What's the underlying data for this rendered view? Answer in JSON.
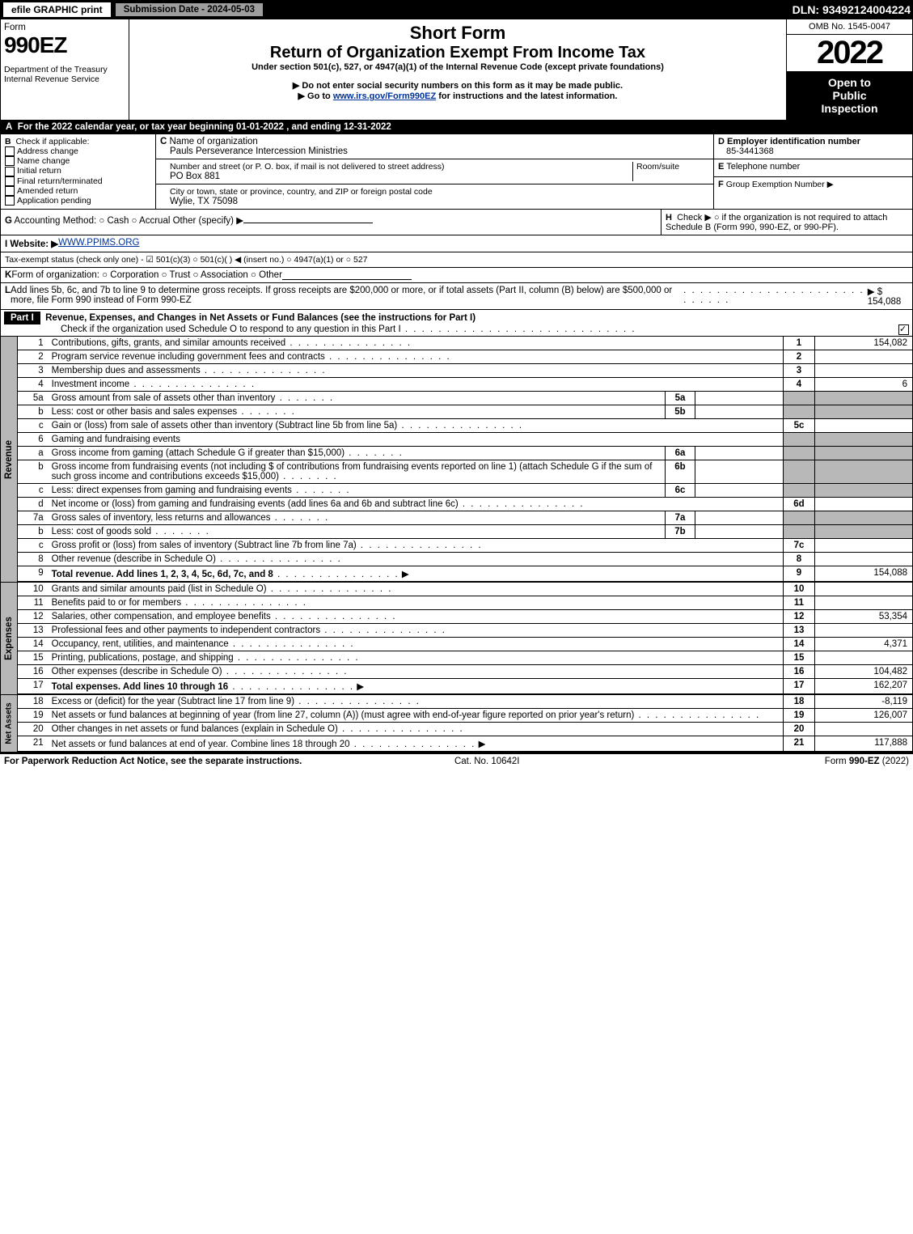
{
  "topbar": {
    "efile": "efile GRAPHIC print",
    "sub": "Submission Date - 2024-05-03",
    "dln": "DLN: 93492124004224"
  },
  "hdr": {
    "form": "Form",
    "n": "990EZ",
    "dept": "Department of the Treasury\nInternal Revenue Service",
    "t1": "Short Form",
    "t2": "Return of Organization Exempt From Income Tax",
    "sub": "Under section 501(c), 527, or 4947(a)(1) of the Internal Revenue Code (except private foundations)",
    "warn": "▶ Do not enter social security numbers on this form as it may be made public.",
    "goto": "▶ Go to www.irs.gov/Form990EZ for instructions and the latest information.",
    "omb": "OMB No. 1545-0047",
    "year": "2022",
    "open": "Open to Public Inspection"
  },
  "A": "For the 2022 calendar year, or tax year beginning 01-01-2022 , and ending 12-31-2022",
  "B": {
    "lbl": "Check if applicable:",
    "items": [
      "Address change",
      "Name change",
      "Initial return",
      "Final return/terminated",
      "Amended return",
      "Application pending"
    ]
  },
  "C": {
    "lbl": "Name of organization",
    "name": "Pauls Perseverance Intercession Ministries",
    "addr_lbl": "Number and street (or P. O. box, if mail is not delivered to street address)",
    "room": "Room/suite",
    "addr": "PO Box 881",
    "city_lbl": "City or town, state or province, country, and ZIP or foreign postal code",
    "city": "Wylie, TX  75098"
  },
  "D": {
    "lbl": "Employer identification number",
    "val": "85-3441368"
  },
  "E": "Telephone number",
  "F": "Group Exemption Number  ▶",
  "G": "Accounting Method:   ○ Cash   ○ Accrual   Other (specify) ▶",
  "H": "Check ▶  ○  if the organization is not required to attach Schedule B (Form 990, 990-EZ, or 990-PF).",
  "I": {
    "lbl": "Website: ▶",
    "val": "WWW.PPIMS.ORG"
  },
  "J": "Tax-exempt status (check only one) - ☑ 501(c)(3) ○ 501(c)(  ) ◀ (insert no.) ○ 4947(a)(1) or ○ 527",
  "K": "Form of organization:   ○ Corporation   ○ Trust   ○ Association   ○ Other",
  "L": {
    "text": "Add lines 5b, 6c, and 7b to line 9 to determine gross receipts. If gross receipts are $200,000 or more, or if total assets (Part II, column (B) below) are $500,000 or more, file Form 990 instead of Form 990-EZ",
    "amt": "▶ $ 154,088"
  },
  "part1": {
    "lbl": "Part I",
    "title": "Revenue, Expenses, and Changes in Net Assets or Fund Balances (see the instructions for Part I)",
    "sub": "Check if the organization used Schedule O to respond to any question in this Part I"
  },
  "sections": {
    "rev": "Revenue",
    "exp": "Expenses",
    "net": "Net Assets"
  },
  "lines": [
    {
      "n": "1",
      "t": "Contributions, gifts, grants, and similar amounts received",
      "r": "1",
      "v": "154,082"
    },
    {
      "n": "2",
      "t": "Program service revenue including government fees and contracts",
      "r": "2",
      "v": ""
    },
    {
      "n": "3",
      "t": "Membership dues and assessments",
      "r": "3",
      "v": ""
    },
    {
      "n": "4",
      "t": "Investment income",
      "r": "4",
      "v": "6"
    },
    {
      "n": "5a",
      "t": "Gross amount from sale of assets other than inventory",
      "sb": "5a"
    },
    {
      "n": "b",
      "t": "Less: cost or other basis and sales expenses",
      "sb": "5b"
    },
    {
      "n": "c",
      "t": "Gain or (loss) from sale of assets other than inventory (Subtract line 5b from line 5a)",
      "r": "5c",
      "v": ""
    },
    {
      "n": "6",
      "t": "Gaming and fundraising events"
    },
    {
      "n": "a",
      "t": "Gross income from gaming (attach Schedule G if greater than $15,000)",
      "sb": "6a"
    },
    {
      "n": "b",
      "t": "Gross income from fundraising events (not including $                          of contributions from fundraising events reported on line 1) (attach Schedule G if the sum of such gross income and contributions exceeds $15,000)",
      "sb": "6b"
    },
    {
      "n": "c",
      "t": "Less: direct expenses from gaming and fundraising events",
      "sb": "6c"
    },
    {
      "n": "d",
      "t": "Net income or (loss) from gaming and fundraising events (add lines 6a and 6b and subtract line 6c)",
      "r": "6d",
      "v": ""
    },
    {
      "n": "7a",
      "t": "Gross sales of inventory, less returns and allowances",
      "sb": "7a"
    },
    {
      "n": "b",
      "t": "Less: cost of goods sold",
      "sb": "7b"
    },
    {
      "n": "c",
      "t": "Gross profit or (loss) from sales of inventory (Subtract line 7b from line 7a)",
      "r": "7c",
      "v": ""
    },
    {
      "n": "8",
      "t": "Other revenue (describe in Schedule O)",
      "r": "8",
      "v": ""
    },
    {
      "n": "9",
      "t": "Total revenue. Add lines 1, 2, 3, 4, 5c, 6d, 7c, and 8",
      "r": "9",
      "v": "154,088",
      "bold": true,
      "arrow": true
    }
  ],
  "exp": [
    {
      "n": "10",
      "t": "Grants and similar amounts paid (list in Schedule O)",
      "r": "10",
      "v": ""
    },
    {
      "n": "11",
      "t": "Benefits paid to or for members",
      "r": "11",
      "v": ""
    },
    {
      "n": "12",
      "t": "Salaries, other compensation, and employee benefits",
      "r": "12",
      "v": "53,354"
    },
    {
      "n": "13",
      "t": "Professional fees and other payments to independent contractors",
      "r": "13",
      "v": ""
    },
    {
      "n": "14",
      "t": "Occupancy, rent, utilities, and maintenance",
      "r": "14",
      "v": "4,371"
    },
    {
      "n": "15",
      "t": "Printing, publications, postage, and shipping",
      "r": "15",
      "v": ""
    },
    {
      "n": "16",
      "t": "Other expenses (describe in Schedule O)",
      "r": "16",
      "v": "104,482"
    },
    {
      "n": "17",
      "t": "Total expenses. Add lines 10 through 16",
      "r": "17",
      "v": "162,207",
      "bold": true,
      "arrow": true
    }
  ],
  "net": [
    {
      "n": "18",
      "t": "Excess or (deficit) for the year (Subtract line 17 from line 9)",
      "r": "18",
      "v": "-8,119"
    },
    {
      "n": "19",
      "t": "Net assets or fund balances at beginning of year (from line 27, column (A)) (must agree with end-of-year figure reported on prior year's return)",
      "r": "19",
      "v": "126,007"
    },
    {
      "n": "20",
      "t": "Other changes in net assets or fund balances (explain in Schedule O)",
      "r": "20",
      "v": ""
    },
    {
      "n": "21",
      "t": "Net assets or fund balances at end of year. Combine lines 18 through 20",
      "r": "21",
      "v": "117,888",
      "arrow": true
    }
  ],
  "footer": {
    "l": "For Paperwork Reduction Act Notice, see the separate instructions.",
    "m": "Cat. No. 10642I",
    "r": "Form 990-EZ (2022)"
  }
}
